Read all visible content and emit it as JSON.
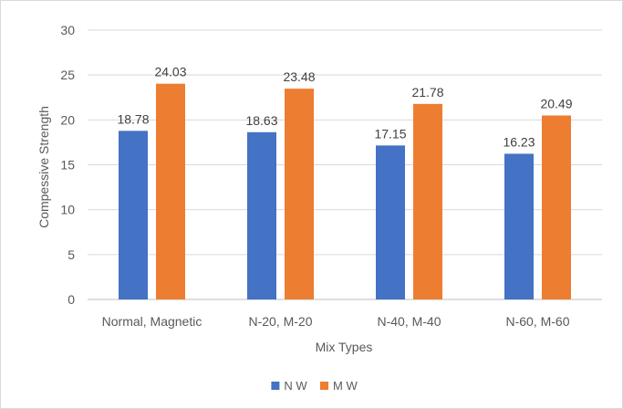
{
  "chart_data": {
    "type": "bar",
    "title": "",
    "xlabel": "Mix Types",
    "ylabel": "Compessive Strength",
    "categories": [
      "Normal, Magnetic",
      "N-20, M-20",
      "N-40, M-40",
      "N-60, M-60"
    ],
    "series": [
      {
        "name": "N W",
        "values": [
          18.78,
          18.63,
          17.15,
          16.23
        ],
        "color": "#4472C4"
      },
      {
        "name": "M W",
        "values": [
          24.03,
          23.48,
          21.78,
          20.49
        ],
        "color": "#ED7D31"
      }
    ],
    "ylim": [
      0,
      30
    ],
    "yticks": [
      0,
      5,
      10,
      15,
      20,
      25,
      30
    ],
    "grid": true,
    "legend": "bottom-center",
    "data_labels": true
  }
}
